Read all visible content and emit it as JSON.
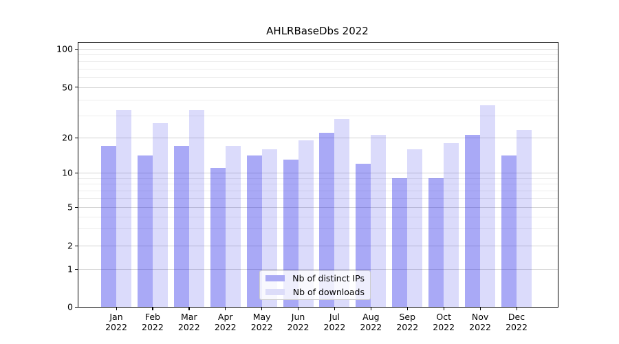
{
  "chart_data": {
    "type": "bar",
    "title": "AHLRBaseDbs 2022",
    "categories": [
      "Jan",
      "Feb",
      "Mar",
      "Apr",
      "May",
      "Jun",
      "Jul",
      "Aug",
      "Sep",
      "Oct",
      "Nov",
      "Dec"
    ],
    "category_year": "2022",
    "series": [
      {
        "name": "Nb of distinct IPs",
        "key": "distinct-ips",
        "color": "rgba(28,28,232,0.38)",
        "legend_swatch_color": "#aaaaf4",
        "values": [
          17,
          14,
          17,
          11,
          14,
          13,
          22,
          12,
          9,
          9,
          21,
          14
        ]
      },
      {
        "name": "Nb of downloads",
        "key": "downloads",
        "color": "rgba(28,28,232,0.155)",
        "legend_swatch_color": "#dcdcf9",
        "values": [
          33,
          26,
          33,
          17,
          16,
          19,
          28,
          21,
          16,
          18,
          36,
          23
        ]
      }
    ],
    "yticks": [
      0,
      1,
      2,
      5,
      10,
      20,
      50,
      100
    ],
    "minor_gridline_values": [
      3,
      4,
      6,
      7,
      8,
      9,
      30,
      40,
      60,
      70,
      80,
      90
    ],
    "ylim": [
      0,
      100
    ],
    "yscale": "log-like with linear segment below 1",
    "xlabel": "",
    "ylabel": "",
    "grid": true,
    "legend_position": "lower center"
  }
}
